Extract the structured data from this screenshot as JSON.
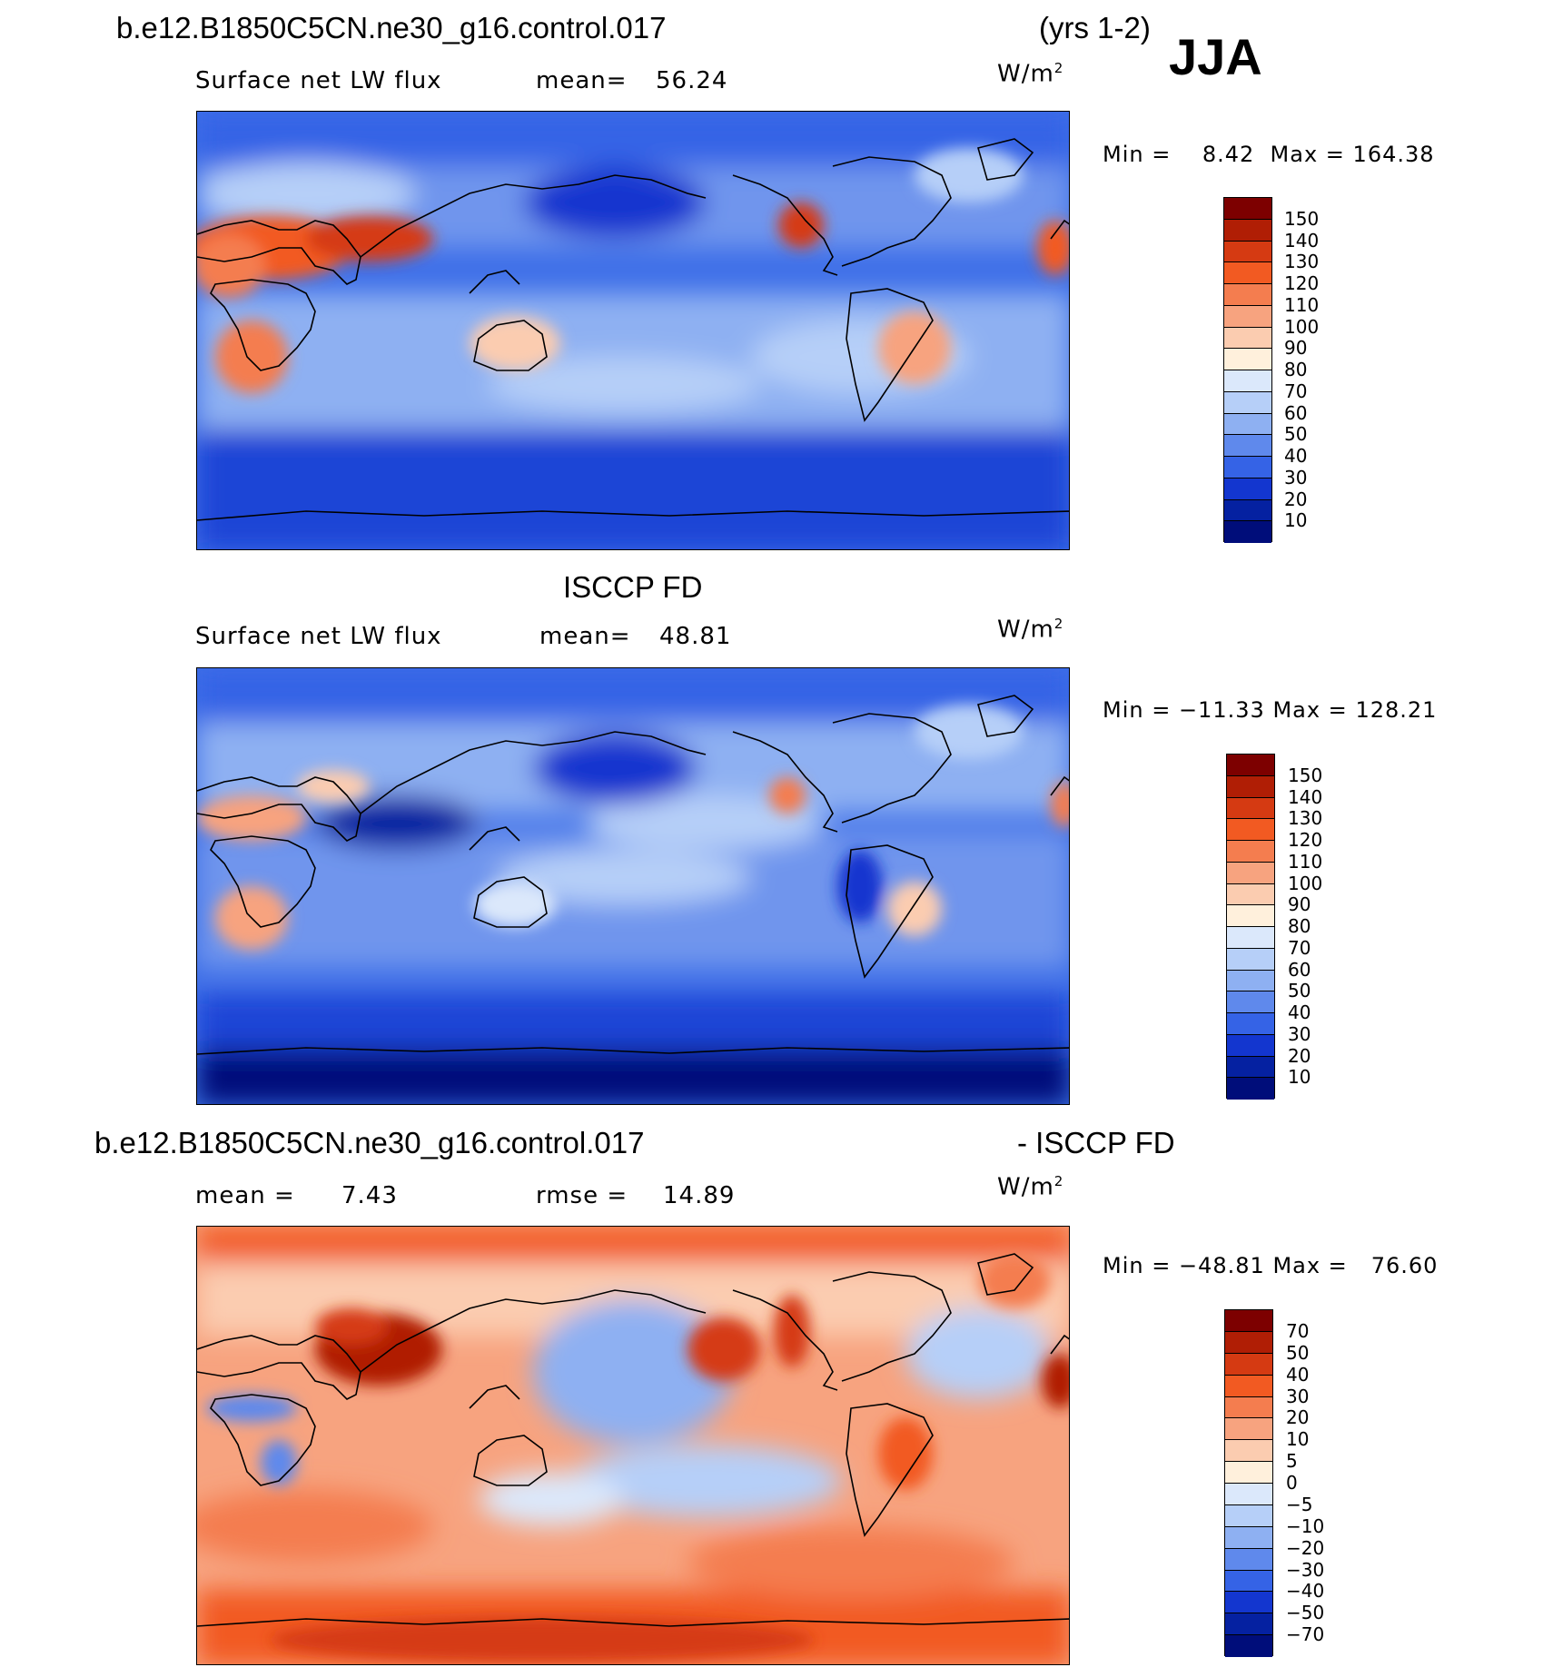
{
  "page_title": "b.e12.B1850C5CN.ne30_g16.control.017",
  "years": "(yrs 1-2)",
  "season": "JJA",
  "panels": [
    {
      "id": "model",
      "subtitle_left": "Surface net LW flux",
      "stat1_label": "mean=",
      "stat1_value": "56.24",
      "stat2_label": "",
      "stat2_value": "",
      "units": "W/m",
      "units_exp": "2",
      "min_label": "Min =",
      "min_value": "8.42",
      "max_label": "Max =",
      "max_value": "164.38",
      "levels": [
        "150",
        "140",
        "130",
        "120",
        "110",
        "100",
        "90",
        "80",
        "70",
        "60",
        "50",
        "40",
        "30",
        "20",
        "10"
      ],
      "colors": [
        "#7d0000",
        "#b01e05",
        "#d53a12",
        "#f25a22",
        "#f47d4f",
        "#f7a37f",
        "#fbccb0",
        "#fff0dc",
        "#dbe8fb",
        "#b6cff8",
        "#8eb0f2",
        "#5f89ec",
        "#3563e6",
        "#1336cf",
        "#0521a1",
        "#000d7a"
      ]
    },
    {
      "id": "obs",
      "title": "ISCCP FD",
      "subtitle_left": "Surface net LW flux",
      "stat1_label": "mean=",
      "stat1_value": "48.81",
      "stat2_label": "",
      "stat2_value": "",
      "units": "W/m",
      "units_exp": "2",
      "min_label": "Min =",
      "min_value": "−11.33",
      "max_label": "Max =",
      "max_value": "128.21",
      "levels": [
        "150",
        "140",
        "130",
        "120",
        "110",
        "100",
        "90",
        "80",
        "70",
        "60",
        "50",
        "40",
        "30",
        "20",
        "10"
      ],
      "colors": [
        "#7d0000",
        "#b01e05",
        "#d53a12",
        "#f25a22",
        "#f47d4f",
        "#f7a37f",
        "#fbccb0",
        "#fff0dc",
        "#dbe8fb",
        "#b6cff8",
        "#8eb0f2",
        "#5f89ec",
        "#3563e6",
        "#1336cf",
        "#0521a1",
        "#000d7a"
      ]
    },
    {
      "id": "diff",
      "title_left": "b.e12.B1850C5CN.ne30_g16.control.017",
      "title_right": "- ISCCP FD",
      "subtitle_left": "",
      "stat1_label": "mean =",
      "stat1_value": "7.43",
      "stat2_label": "rmse =",
      "stat2_value": "14.89",
      "units": "W/m",
      "units_exp": "2",
      "min_label": "Min =",
      "min_value": "−48.81",
      "max_label": "Max =",
      "max_value": "76.60",
      "levels": [
        "70",
        "50",
        "40",
        "30",
        "20",
        "10",
        "5",
        "0",
        "−5",
        "−10",
        "−20",
        "−30",
        "−40",
        "−50",
        "−70"
      ],
      "colors": [
        "#7d0000",
        "#b01e05",
        "#d53a12",
        "#f25a22",
        "#f47d4f",
        "#f7a37f",
        "#fbccb0",
        "#fff0dc",
        "#dbe8fb",
        "#b6cff8",
        "#8eb0f2",
        "#5f89ec",
        "#3563e6",
        "#1336cf",
        "#0521a1",
        "#000d7a"
      ]
    }
  ]
}
